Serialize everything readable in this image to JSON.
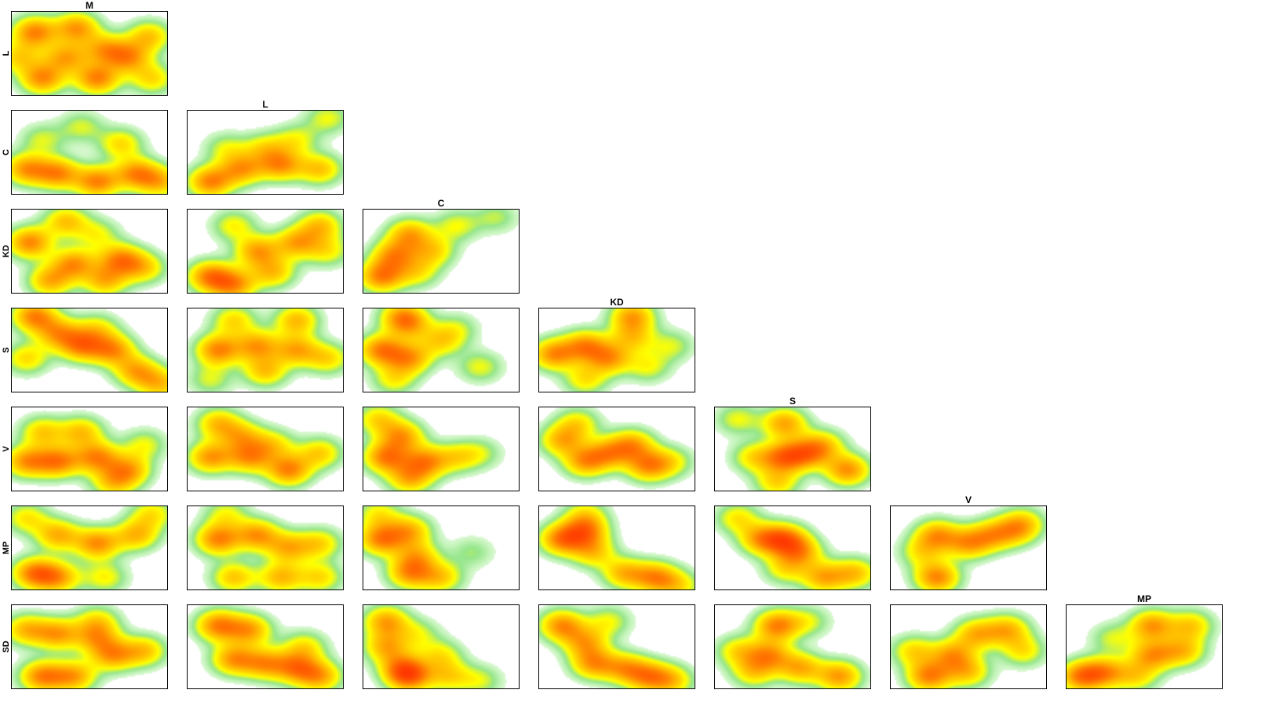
{
  "chart_data": {
    "type": "heatmap",
    "layout": "lower-triangular-pairs",
    "columns": [
      "M",
      "L",
      "C",
      "KD",
      "S",
      "V",
      "MP"
    ],
    "rows": [
      "L",
      "C",
      "KD",
      "S",
      "V",
      "MP",
      "SD"
    ],
    "color_scale": [
      "#ffffff",
      "#a8e8a0",
      "#ffff00",
      "#ffa500",
      "#ff0000"
    ],
    "grid": false,
    "panels": [
      {
        "row": "L",
        "col": "M",
        "peaks": [
          [
            0.15,
            0.25,
            1.0
          ],
          [
            0.42,
            0.2,
            0.9
          ],
          [
            0.2,
            0.8,
            0.95
          ],
          [
            0.55,
            0.8,
            1.0
          ],
          [
            0.75,
            0.55,
            0.85
          ],
          [
            0.88,
            0.3,
            0.7
          ],
          [
            0.35,
            0.55,
            0.8
          ],
          [
            0.6,
            0.45,
            0.75
          ],
          [
            0.9,
            0.8,
            0.6
          ],
          [
            0.05,
            0.55,
            0.6
          ]
        ]
      },
      {
        "row": "C",
        "col": "M",
        "peaks": [
          [
            0.1,
            0.7,
            0.9
          ],
          [
            0.3,
            0.75,
            0.95
          ],
          [
            0.55,
            0.85,
            1.0
          ],
          [
            0.8,
            0.75,
            0.9
          ],
          [
            0.45,
            0.2,
            0.4
          ],
          [
            0.7,
            0.4,
            0.6
          ],
          [
            0.2,
            0.35,
            0.4
          ],
          [
            0.95,
            0.85,
            0.7
          ]
        ]
      },
      {
        "row": "C",
        "col": "L",
        "peaks": [
          [
            0.15,
            0.85,
            1.0
          ],
          [
            0.35,
            0.7,
            0.85
          ],
          [
            0.6,
            0.65,
            0.9
          ],
          [
            0.85,
            0.7,
            0.7
          ],
          [
            0.7,
            0.35,
            0.45
          ],
          [
            0.9,
            0.1,
            0.45
          ],
          [
            0.25,
            0.45,
            0.4
          ],
          [
            0.5,
            0.45,
            0.5
          ]
        ]
      },
      {
        "row": "KD",
        "col": "M",
        "peaks": [
          [
            0.12,
            0.4,
            1.0
          ],
          [
            0.35,
            0.15,
            0.7
          ],
          [
            0.4,
            0.65,
            0.9
          ],
          [
            0.7,
            0.6,
            0.95
          ],
          [
            0.25,
            0.85,
            0.8
          ],
          [
            0.6,
            0.85,
            0.75
          ],
          [
            0.85,
            0.7,
            0.6
          ],
          [
            0.55,
            0.3,
            0.45
          ]
        ]
      },
      {
        "row": "KD",
        "col": "L",
        "peaks": [
          [
            0.15,
            0.8,
            1.0
          ],
          [
            0.3,
            0.9,
            0.9
          ],
          [
            0.45,
            0.5,
            0.85
          ],
          [
            0.7,
            0.4,
            0.8
          ],
          [
            0.85,
            0.2,
            0.7
          ],
          [
            0.55,
            0.75,
            0.7
          ],
          [
            0.3,
            0.2,
            0.5
          ],
          [
            0.9,
            0.5,
            0.5
          ]
        ]
      },
      {
        "row": "KD",
        "col": "C",
        "peaks": [
          [
            0.12,
            0.8,
            1.0
          ],
          [
            0.2,
            0.55,
            0.85
          ],
          [
            0.3,
            0.3,
            0.8
          ],
          [
            0.45,
            0.5,
            0.6
          ],
          [
            0.6,
            0.2,
            0.45
          ],
          [
            0.85,
            0.1,
            0.35
          ],
          [
            0.35,
            0.75,
            0.5
          ]
        ]
      },
      {
        "row": "S",
        "col": "M",
        "peaks": [
          [
            0.15,
            0.1,
            1.0
          ],
          [
            0.3,
            0.3,
            0.8
          ],
          [
            0.45,
            0.45,
            0.95
          ],
          [
            0.65,
            0.5,
            0.9
          ],
          [
            0.8,
            0.75,
            0.8
          ],
          [
            0.95,
            0.9,
            0.7
          ],
          [
            0.1,
            0.6,
            0.6
          ],
          [
            0.55,
            0.25,
            0.5
          ]
        ]
      },
      {
        "row": "S",
        "col": "L",
        "peaks": [
          [
            0.2,
            0.5,
            1.0
          ],
          [
            0.45,
            0.45,
            0.85
          ],
          [
            0.7,
            0.5,
            0.8
          ],
          [
            0.3,
            0.15,
            0.6
          ],
          [
            0.7,
            0.15,
            0.75
          ],
          [
            0.5,
            0.75,
            0.7
          ],
          [
            0.9,
            0.6,
            0.6
          ],
          [
            0.15,
            0.85,
            0.4
          ]
        ]
      },
      {
        "row": "S",
        "col": "C",
        "peaks": [
          [
            0.12,
            0.5,
            1.0
          ],
          [
            0.3,
            0.6,
            0.85
          ],
          [
            0.3,
            0.2,
            0.6
          ],
          [
            0.25,
            0.1,
            0.7
          ],
          [
            0.5,
            0.4,
            0.55
          ],
          [
            0.75,
            0.7,
            0.45
          ],
          [
            0.6,
            0.25,
            0.35
          ],
          [
            0.2,
            0.85,
            0.5
          ]
        ]
      },
      {
        "row": "S",
        "col": "KD",
        "peaks": [
          [
            0.1,
            0.55,
            0.95
          ],
          [
            0.3,
            0.45,
            0.9
          ],
          [
            0.45,
            0.6,
            0.85
          ],
          [
            0.6,
            0.35,
            0.6
          ],
          [
            0.6,
            0.1,
            0.85
          ],
          [
            0.7,
            0.7,
            0.45
          ],
          [
            0.85,
            0.45,
            0.4
          ],
          [
            0.3,
            0.85,
            0.55
          ]
        ]
      },
      {
        "row": "V",
        "col": "M",
        "peaks": [
          [
            0.1,
            0.65,
            0.9
          ],
          [
            0.3,
            0.65,
            1.0
          ],
          [
            0.55,
            0.6,
            0.95
          ],
          [
            0.75,
            0.75,
            0.8
          ],
          [
            0.2,
            0.3,
            0.65
          ],
          [
            0.45,
            0.3,
            0.7
          ],
          [
            0.85,
            0.45,
            0.45
          ],
          [
            0.65,
            0.9,
            0.6
          ]
        ]
      },
      {
        "row": "V",
        "col": "L",
        "peaks": [
          [
            0.15,
            0.6,
            0.9
          ],
          [
            0.4,
            0.6,
            0.85
          ],
          [
            0.65,
            0.75,
            1.0
          ],
          [
            0.85,
            0.55,
            0.65
          ],
          [
            0.2,
            0.2,
            0.7
          ],
          [
            0.35,
            0.35,
            0.65
          ],
          [
            0.55,
            0.45,
            0.55
          ]
        ]
      },
      {
        "row": "V",
        "col": "C",
        "peaks": [
          [
            0.15,
            0.6,
            1.0
          ],
          [
            0.25,
            0.35,
            0.85
          ],
          [
            0.4,
            0.65,
            0.9
          ],
          [
            0.3,
            0.85,
            0.75
          ],
          [
            0.6,
            0.6,
            0.5
          ],
          [
            0.75,
            0.55,
            0.35
          ],
          [
            0.1,
            0.15,
            0.6
          ]
        ]
      },
      {
        "row": "V",
        "col": "KD",
        "peaks": [
          [
            0.15,
            0.4,
            0.75
          ],
          [
            0.3,
            0.65,
            0.85
          ],
          [
            0.45,
            0.55,
            0.75
          ],
          [
            0.6,
            0.45,
            0.8
          ],
          [
            0.7,
            0.7,
            0.9
          ],
          [
            0.25,
            0.2,
            0.55
          ],
          [
            0.85,
            0.65,
            0.45
          ]
        ]
      },
      {
        "row": "V",
        "col": "S",
        "peaks": [
          [
            0.45,
            0.2,
            0.85
          ],
          [
            0.45,
            0.6,
            1.0
          ],
          [
            0.6,
            0.55,
            0.8
          ],
          [
            0.85,
            0.75,
            0.95
          ],
          [
            0.25,
            0.6,
            0.55
          ],
          [
            0.15,
            0.15,
            0.45
          ],
          [
            0.7,
            0.45,
            0.55
          ],
          [
            0.4,
            0.9,
            0.6
          ]
        ]
      },
      {
        "row": "MP",
        "col": "M",
        "peaks": [
          [
            0.15,
            0.8,
            1.0
          ],
          [
            0.3,
            0.85,
            0.8
          ],
          [
            0.3,
            0.35,
            0.8
          ],
          [
            0.55,
            0.45,
            0.95
          ],
          [
            0.8,
            0.35,
            0.75
          ],
          [
            0.9,
            0.1,
            0.55
          ],
          [
            0.1,
            0.15,
            0.55
          ],
          [
            0.6,
            0.85,
            0.5
          ]
        ]
      },
      {
        "row": "MP",
        "col": "L",
        "peaks": [
          [
            0.2,
            0.4,
            1.0
          ],
          [
            0.45,
            0.35,
            0.9
          ],
          [
            0.65,
            0.5,
            0.75
          ],
          [
            0.85,
            0.45,
            0.6
          ],
          [
            0.3,
            0.85,
            0.7
          ],
          [
            0.6,
            0.85,
            0.75
          ],
          [
            0.85,
            0.85,
            0.6
          ],
          [
            0.25,
            0.1,
            0.45
          ]
        ]
      },
      {
        "row": "MP",
        "col": "C",
        "peaks": [
          [
            0.12,
            0.4,
            1.0
          ],
          [
            0.3,
            0.3,
            0.75
          ],
          [
            0.35,
            0.6,
            0.65
          ],
          [
            0.3,
            0.8,
            0.85
          ],
          [
            0.5,
            0.85,
            0.65
          ],
          [
            0.7,
            0.55,
            0.3
          ],
          [
            0.1,
            0.1,
            0.5
          ]
        ]
      },
      {
        "row": "MP",
        "col": "KD",
        "peaks": [
          [
            0.15,
            0.4,
            1.0
          ],
          [
            0.3,
            0.3,
            0.9
          ],
          [
            0.35,
            0.55,
            0.65
          ],
          [
            0.55,
            0.8,
            0.75
          ],
          [
            0.75,
            0.85,
            0.9
          ],
          [
            0.9,
            0.95,
            0.5
          ],
          [
            0.3,
            0.1,
            0.45
          ]
        ]
      },
      {
        "row": "MP",
        "col": "S",
        "peaks": [
          [
            0.3,
            0.4,
            0.8
          ],
          [
            0.45,
            0.4,
            1.0
          ],
          [
            0.55,
            0.55,
            0.75
          ],
          [
            0.7,
            0.85,
            0.8
          ],
          [
            0.9,
            0.8,
            0.7
          ],
          [
            0.15,
            0.15,
            0.55
          ],
          [
            0.45,
            0.75,
            0.5
          ]
        ]
      },
      {
        "row": "MP",
        "col": "V",
        "peaks": [
          [
            0.3,
            0.35,
            0.85
          ],
          [
            0.5,
            0.45,
            0.8
          ],
          [
            0.65,
            0.35,
            0.7
          ],
          [
            0.8,
            0.3,
            0.55
          ],
          [
            0.3,
            0.85,
            1.0
          ],
          [
            0.2,
            0.55,
            0.5
          ],
          [
            0.85,
            0.2,
            0.5
          ]
        ]
      },
      {
        "row": "SD",
        "col": "M",
        "peaks": [
          [
            0.2,
            0.85,
            1.0
          ],
          [
            0.4,
            0.85,
            0.85
          ],
          [
            0.1,
            0.3,
            0.75
          ],
          [
            0.3,
            0.35,
            0.85
          ],
          [
            0.55,
            0.4,
            0.7
          ],
          [
            0.65,
            0.6,
            0.85
          ],
          [
            0.85,
            0.55,
            0.7
          ],
          [
            0.55,
            0.2,
            0.55
          ]
        ]
      },
      {
        "row": "SD",
        "col": "L",
        "peaks": [
          [
            0.2,
            0.25,
            1.0
          ],
          [
            0.4,
            0.3,
            0.85
          ],
          [
            0.3,
            0.65,
            0.9
          ],
          [
            0.5,
            0.7,
            0.85
          ],
          [
            0.7,
            0.75,
            0.9
          ],
          [
            0.85,
            0.85,
            0.8
          ],
          [
            0.75,
            0.5,
            0.55
          ]
        ]
      },
      {
        "row": "SD",
        "col": "C",
        "peaks": [
          [
            0.15,
            0.2,
            0.85
          ],
          [
            0.15,
            0.5,
            0.75
          ],
          [
            0.25,
            0.75,
            0.7
          ],
          [
            0.3,
            0.85,
            1.0
          ],
          [
            0.5,
            0.6,
            0.5
          ],
          [
            0.55,
            0.85,
            0.55
          ],
          [
            0.75,
            0.9,
            0.4
          ],
          [
            0.35,
            0.35,
            0.4
          ]
        ]
      },
      {
        "row": "SD",
        "col": "KD",
        "peaks": [
          [
            0.15,
            0.25,
            0.95
          ],
          [
            0.3,
            0.45,
            0.75
          ],
          [
            0.35,
            0.7,
            0.85
          ],
          [
            0.55,
            0.75,
            0.75
          ],
          [
            0.7,
            0.85,
            0.85
          ],
          [
            0.85,
            0.9,
            0.65
          ],
          [
            0.45,
            0.2,
            0.45
          ]
        ]
      },
      {
        "row": "SD",
        "col": "S",
        "peaks": [
          [
            0.35,
            0.6,
            0.85
          ],
          [
            0.4,
            0.25,
            1.0
          ],
          [
            0.55,
            0.75,
            0.8
          ],
          [
            0.8,
            0.85,
            0.9
          ],
          [
            0.15,
            0.55,
            0.55
          ],
          [
            0.25,
            0.8,
            0.6
          ],
          [
            0.6,
            0.2,
            0.4
          ]
        ]
      },
      {
        "row": "SD",
        "col": "V",
        "peaks": [
          [
            0.25,
            0.85,
            1.0
          ],
          [
            0.4,
            0.6,
            0.8
          ],
          [
            0.55,
            0.35,
            0.75
          ],
          [
            0.75,
            0.3,
            0.75
          ],
          [
            0.85,
            0.55,
            0.55
          ],
          [
            0.15,
            0.55,
            0.6
          ],
          [
            0.5,
            0.8,
            0.65
          ]
        ]
      },
      {
        "row": "SD",
        "col": "MP",
        "peaks": [
          [
            0.1,
            0.85,
            1.0
          ],
          [
            0.25,
            0.8,
            0.8
          ],
          [
            0.55,
            0.25,
            0.9
          ],
          [
            0.55,
            0.6,
            0.85
          ],
          [
            0.75,
            0.55,
            0.7
          ],
          [
            0.8,
            0.25,
            0.65
          ],
          [
            0.45,
            0.85,
            0.55
          ],
          [
            0.3,
            0.4,
            0.4
          ]
        ]
      }
    ]
  }
}
